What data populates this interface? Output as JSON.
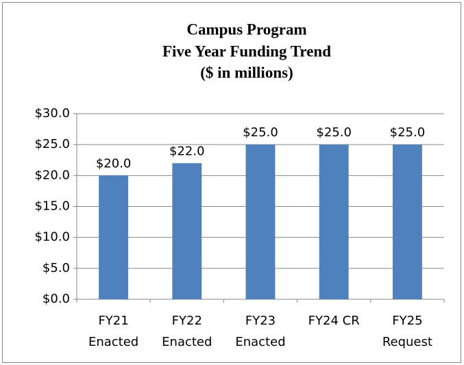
{
  "chart_data": {
    "type": "bar",
    "title": [
      "Campus Program",
      "Five Year Funding Trend",
      "($ in millions)"
    ],
    "categories": [
      [
        "FY21",
        "Enacted"
      ],
      [
        "FY22",
        "Enacted"
      ],
      [
        "FY23",
        "Enacted"
      ],
      [
        "FY24 CR"
      ],
      [
        "FY25",
        "Request"
      ]
    ],
    "values": [
      20,
      22,
      25,
      25,
      25
    ],
    "value_labels": [
      "$20.0",
      "$22.0",
      "$25.0",
      "$25.0",
      "$25.0"
    ],
    "color": "#4f81bd",
    "ylim": [
      0,
      30
    ],
    "yticks": [
      {
        "value": 0,
        "label": "$0.0"
      },
      {
        "value": 5,
        "label": "$5.0"
      },
      {
        "value": 10,
        "label": "$10.0"
      },
      {
        "value": 15,
        "label": "$15.0"
      },
      {
        "value": 20,
        "label": "$20.0"
      },
      {
        "value": 25,
        "label": "$25.0"
      },
      {
        "value": 30,
        "label": "$30.0"
      }
    ],
    "grid": true
  }
}
